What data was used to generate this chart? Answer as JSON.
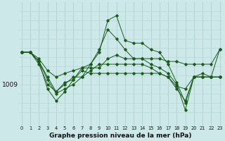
{
  "title": "Graphe pression niveau de la mer (hPa)",
  "ylabel_value": 1009,
  "background_color": "#cce8e8",
  "grid_color_v": "#aacccc",
  "grid_color_h": "#b8d8d8",
  "line_color": "#1a5c1a",
  "ylim": [
    1004.5,
    1018.0
  ],
  "xlim": [
    -0.3,
    23.3
  ],
  "series": [
    [
      1012.5,
      1012.5,
      1011.8,
      1010.5,
      1009.8,
      1010.2,
      1010.5,
      1010.8,
      1010.8,
      1010.8,
      1011.8,
      1012.2,
      1011.8,
      1011.8,
      1011.8,
      1011.8,
      1011.8,
      1011.5,
      1011.5,
      1011.2,
      1011.2,
      1011.2,
      1011.2,
      1012.8
    ],
    [
      1012.5,
      1012.5,
      1011.5,
      1009.5,
      1008.0,
      1008.5,
      1009.0,
      1009.8,
      1011.2,
      1012.5,
      1016.0,
      1016.5,
      1013.8,
      1013.5,
      1013.5,
      1012.8,
      1012.5,
      1011.2,
      1009.2,
      1007.0,
      1009.8,
      1009.8,
      1009.8,
      1009.8
    ],
    [
      1012.5,
      1012.5,
      1011.2,
      1009.0,
      1008.2,
      1009.2,
      1009.5,
      1010.5,
      1010.2,
      1010.2,
      1010.2,
      1010.2,
      1010.2,
      1010.2,
      1010.2,
      1010.2,
      1010.2,
      1009.8,
      1008.8,
      1008.5,
      1009.8,
      1010.2,
      1009.8,
      1009.8
    ],
    [
      1012.5,
      1012.5,
      1011.5,
      1009.8,
      1008.2,
      1009.0,
      1009.8,
      1009.8,
      1010.5,
      1011.2,
      1011.2,
      1011.2,
      1011.2,
      1011.2,
      1011.2,
      1010.8,
      1010.2,
      1009.8,
      1008.5,
      1007.2,
      1009.8,
      1009.8,
      1009.8,
      1012.8
    ],
    [
      1012.5,
      1012.5,
      1011.5,
      1008.5,
      1007.2,
      1008.2,
      1009.5,
      1010.8,
      1011.2,
      1012.8,
      1015.0,
      1014.0,
      1012.8,
      1011.8,
      1011.8,
      1011.2,
      1010.8,
      1010.2,
      1009.0,
      1006.2,
      1009.8,
      1009.8,
      1009.8,
      1009.8
    ]
  ]
}
